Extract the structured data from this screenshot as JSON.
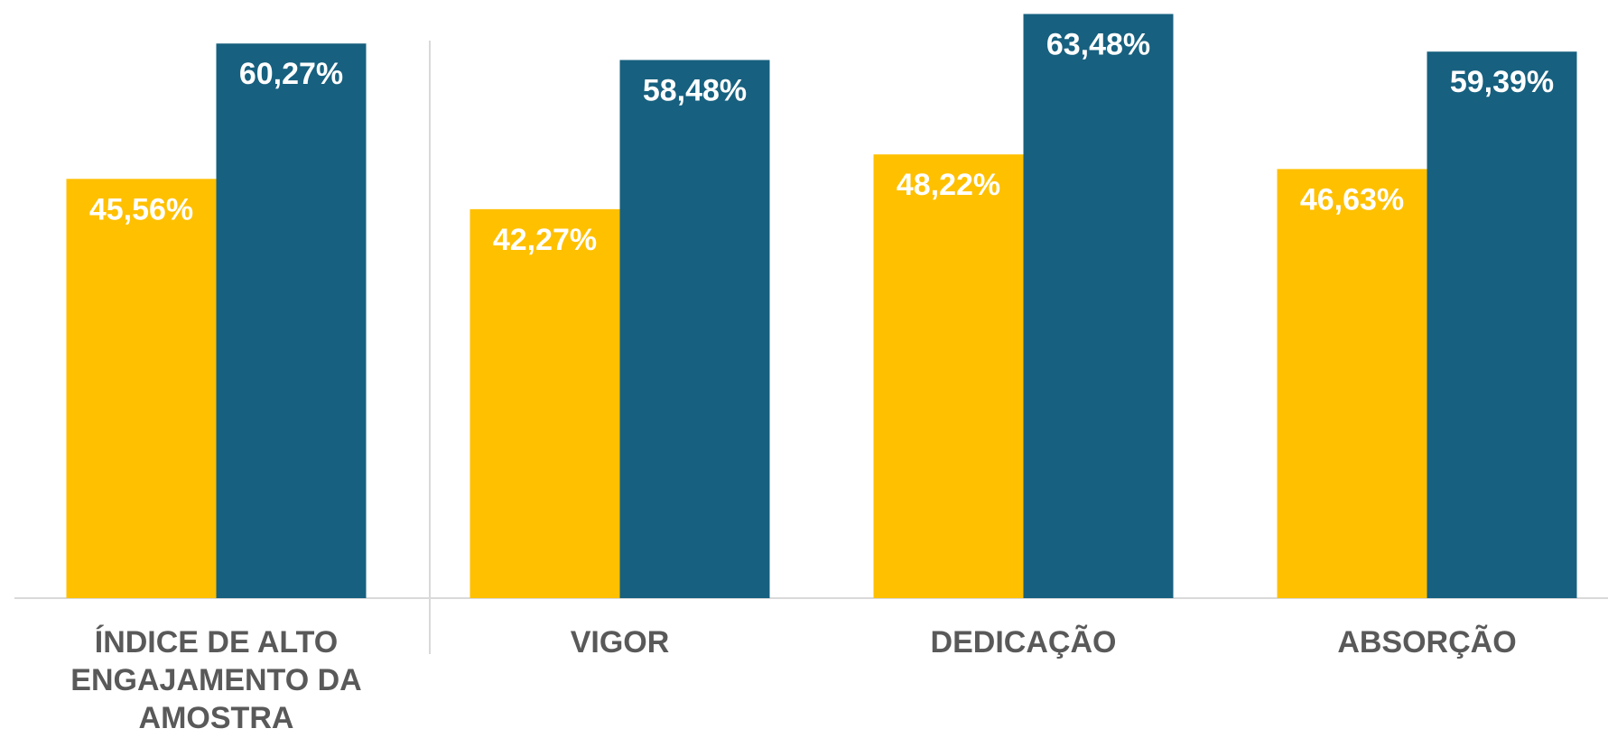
{
  "chart_data": {
    "type": "bar",
    "categories": [
      "ÍNDICE DE ALTO ENGAJAMENTO DA AMOSTRA",
      "VIGOR",
      "DEDICAÇÃO",
      "ABSORÇÃO"
    ],
    "series": [
      {
        "color": "#FFC000",
        "values": [
          45.56,
          42.27,
          48.22,
          46.63
        ],
        "value_labels": [
          "45,56%",
          "42,27%",
          "48,22%",
          "46,63%"
        ]
      },
      {
        "color": "#17607F",
        "values": [
          60.27,
          58.48,
          63.48,
          59.39
        ],
        "value_labels": [
          "60,27%",
          "58,48%",
          "63,48%",
          "59,39%"
        ]
      }
    ],
    "ylim": [
      0,
      65
    ]
  }
}
